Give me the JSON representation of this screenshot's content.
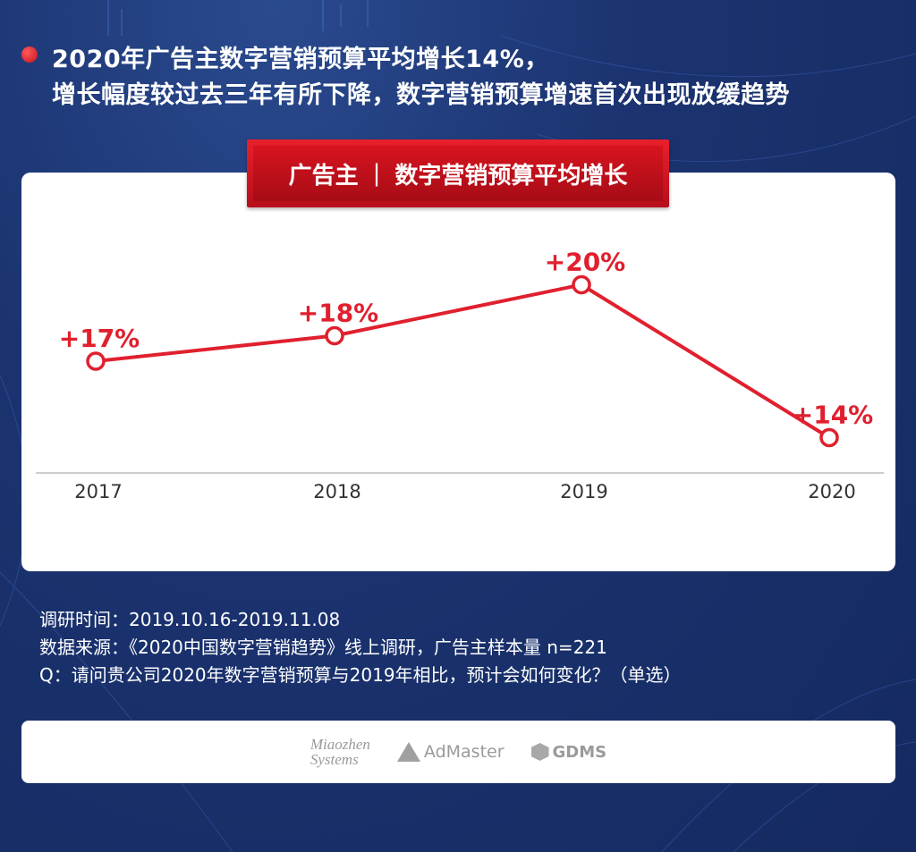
{
  "header": {
    "line1": "2020年广告主数字营销预算平均增长14%，",
    "line2": "增长幅度较过去三年有所下降，数字营销预算增速首次出现放缓趋势"
  },
  "badge": {
    "left": "广告主",
    "separator": "|",
    "right": "数字营销预算平均增长"
  },
  "colors": {
    "accent": "#e0202e",
    "background": "#1b3370",
    "axis": "#999999"
  },
  "chart_data": {
    "type": "line",
    "title": "广告主 | 数字营销预算平均增长",
    "categories": [
      "2017",
      "2018",
      "2019",
      "2020"
    ],
    "series": [
      {
        "values": [
          17,
          18,
          20,
          14
        ]
      }
    ],
    "data_labels": [
      "+17%",
      "+18%",
      "+20%",
      "+14%"
    ],
    "grid": false
  },
  "notes": {
    "survey_time": "调研时间：2019.10.16-2019.11.08",
    "source": "数据来源：《2020中国数字营销趋势》线上调研，广告主样本量 n=221",
    "question": "Q：请问贵公司2020年数字营销预算与2019年相比，预计会如何变化？（单选）"
  },
  "logos": {
    "miaozhen_line1": "Miaozhen",
    "miaozhen_line2": "Systems",
    "admaster": "AdMaster",
    "gdms": "GDMS"
  }
}
